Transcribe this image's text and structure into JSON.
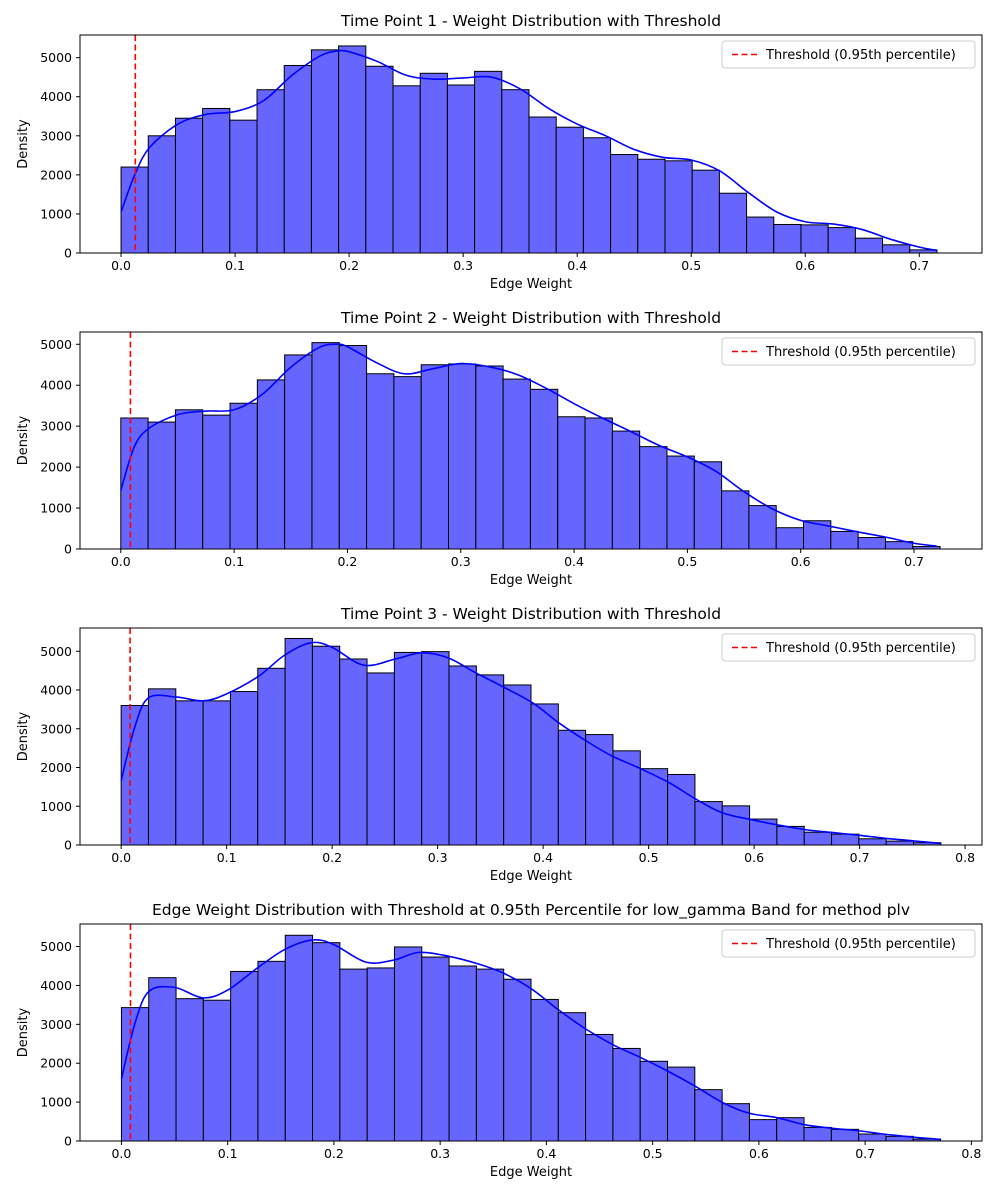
{
  "colors": {
    "bar_fill": "#6666ff",
    "bar_edge": "#000000",
    "kde_line": "#0000ff",
    "threshold_line": "#ff0000",
    "legend_border": "#cccccc"
  },
  "chart_data": [
    {
      "type": "bar",
      "title": "Time Point 1 - Weight Distribution with Threshold",
      "xlabel": "Edge Weight",
      "ylabel": "Density",
      "xlim": [
        -0.036,
        0.755
      ],
      "ylim": [
        0,
        5580
      ],
      "xticks": [
        0.0,
        0.1,
        0.2,
        0.3,
        0.4,
        0.5,
        0.6,
        0.7
      ],
      "xtick_labels": [
        "0.0",
        "0.1",
        "0.2",
        "0.3",
        "0.4",
        "0.5",
        "0.6",
        "0.7"
      ],
      "yticks": [
        0,
        1000,
        2000,
        3000,
        4000,
        5000
      ],
      "ytick_labels": [
        "0",
        "1000",
        "2000",
        "3000",
        "4000",
        "5000"
      ],
      "bin_start": 0.0,
      "bin_end": 0.7155,
      "values": [
        2200,
        3000,
        3450,
        3700,
        3400,
        4180,
        4800,
        5200,
        5300,
        4780,
        4280,
        4600,
        4300,
        4650,
        4180,
        3480,
        3220,
        2950,
        2520,
        2400,
        2360,
        2120,
        1530,
        920,
        730,
        720,
        650,
        380,
        210,
        80
      ],
      "kde": {
        "x": [
          0.0,
          0.012,
          0.025,
          0.05,
          0.075,
          0.1,
          0.125,
          0.15,
          0.175,
          0.19,
          0.2,
          0.225,
          0.25,
          0.275,
          0.3,
          0.325,
          0.35,
          0.375,
          0.4,
          0.425,
          0.45,
          0.475,
          0.5,
          0.525,
          0.55,
          0.575,
          0.6,
          0.625,
          0.65,
          0.675,
          0.7,
          0.715
        ],
        "y": [
          1050,
          2000,
          2700,
          3300,
          3550,
          3620,
          3900,
          4550,
          5050,
          5170,
          5150,
          4900,
          4550,
          4450,
          4480,
          4500,
          4200,
          3700,
          3300,
          3000,
          2650,
          2450,
          2380,
          2100,
          1550,
          1050,
          800,
          740,
          600,
          350,
          150,
          70
        ]
      },
      "threshold": 0.0125,
      "legend": "Threshold (0.95th percentile)"
    },
    {
      "type": "bar",
      "title": "Time Point 2 - Weight Distribution with Threshold",
      "xlabel": "Edge Weight",
      "ylabel": "Density",
      "xlim": [
        -0.036,
        0.76
      ],
      "ylim": [
        0,
        5300
      ],
      "xticks": [
        0.0,
        0.1,
        0.2,
        0.3,
        0.4,
        0.5,
        0.6,
        0.7
      ],
      "xtick_labels": [
        "0.0",
        "0.1",
        "0.2",
        "0.3",
        "0.4",
        "0.5",
        "0.6",
        "0.7"
      ],
      "yticks": [
        0,
        1000,
        2000,
        3000,
        4000,
        5000
      ],
      "ytick_labels": [
        "0",
        "1000",
        "2000",
        "3000",
        "4000",
        "5000"
      ],
      "bin_start": 0.0,
      "bin_end": 0.723,
      "values": [
        3200,
        3100,
        3400,
        3270,
        3560,
        4130,
        4740,
        5040,
        4970,
        4280,
        4210,
        4500,
        4520,
        4470,
        4150,
        3900,
        3230,
        3200,
        2880,
        2500,
        2270,
        2130,
        1420,
        1060,
        520,
        690,
        430,
        280,
        180,
        60
      ],
      "kde": {
        "x": [
          0.0,
          0.012,
          0.025,
          0.05,
          0.075,
          0.1,
          0.125,
          0.15,
          0.175,
          0.19,
          0.2,
          0.225,
          0.25,
          0.275,
          0.3,
          0.325,
          0.35,
          0.375,
          0.4,
          0.425,
          0.45,
          0.475,
          0.5,
          0.525,
          0.55,
          0.575,
          0.6,
          0.625,
          0.65,
          0.675,
          0.7,
          0.72
        ],
        "y": [
          1430,
          2500,
          2950,
          3280,
          3370,
          3400,
          3780,
          4440,
          4920,
          5000,
          4940,
          4560,
          4280,
          4400,
          4530,
          4450,
          4260,
          3930,
          3550,
          3200,
          2870,
          2530,
          2250,
          1900,
          1400,
          980,
          700,
          560,
          420,
          290,
          140,
          70
        ]
      },
      "threshold": 0.0085,
      "legend": "Threshold (0.95th percentile)"
    },
    {
      "type": "bar",
      "title": "Time Point 3 - Weight Distribution with Threshold",
      "xlabel": "Edge Weight",
      "ylabel": "Density",
      "xlim": [
        -0.039,
        0.816
      ],
      "ylim": [
        0,
        5600
      ],
      "xticks": [
        0.0,
        0.1,
        0.2,
        0.3,
        0.4,
        0.5,
        0.6,
        0.7,
        0.8
      ],
      "xtick_labels": [
        "0.0",
        "0.1",
        "0.2",
        "0.3",
        "0.4",
        "0.5",
        "0.6",
        "0.7",
        "0.8"
      ],
      "yticks": [
        0,
        1000,
        2000,
        3000,
        4000,
        5000
      ],
      "ytick_labels": [
        "0",
        "1000",
        "2000",
        "3000",
        "4000",
        "5000"
      ],
      "bin_start": 0.0,
      "bin_end": 0.777,
      "values": [
        3600,
        4030,
        3720,
        3720,
        3960,
        4560,
        5330,
        5130,
        4800,
        4440,
        4970,
        4990,
        4620,
        4390,
        4130,
        3640,
        2960,
        2850,
        2430,
        1970,
        1820,
        1120,
        1010,
        670,
        480,
        330,
        280,
        160,
        100,
        60
      ],
      "kde": {
        "x": [
          0.0,
          0.013,
          0.026,
          0.052,
          0.078,
          0.1,
          0.13,
          0.155,
          0.18,
          0.2,
          0.23,
          0.26,
          0.285,
          0.31,
          0.335,
          0.36,
          0.39,
          0.415,
          0.44,
          0.465,
          0.49,
          0.52,
          0.545,
          0.57,
          0.6,
          0.62,
          0.65,
          0.675,
          0.7,
          0.725,
          0.75,
          0.777
        ],
        "y": [
          1660,
          3050,
          3800,
          3820,
          3720,
          3900,
          4350,
          4900,
          5220,
          5100,
          4640,
          4800,
          4960,
          4830,
          4460,
          4110,
          3670,
          3150,
          2700,
          2300,
          2000,
          1600,
          1180,
          830,
          640,
          530,
          390,
          320,
          250,
          170,
          110,
          40
        ]
      },
      "threshold": 0.0085,
      "legend": "Threshold (0.95th percentile)"
    },
    {
      "type": "bar",
      "title": "Edge Weight Distribution with Threshold at 0.95th Percentile for low_gamma Band for method plv",
      "xlabel": "Edge Weight",
      "ylabel": "Density",
      "xlim": [
        -0.039,
        0.81
      ],
      "ylim": [
        0,
        5580
      ],
      "xticks": [
        0.0,
        0.1,
        0.2,
        0.3,
        0.4,
        0.5,
        0.6,
        0.7,
        0.8
      ],
      "xtick_labels": [
        "0.0",
        "0.1",
        "0.2",
        "0.3",
        "0.4",
        "0.5",
        "0.6",
        "0.7",
        "0.8"
      ],
      "yticks": [
        0,
        1000,
        2000,
        3000,
        4000,
        5000
      ],
      "ytick_labels": [
        "0",
        "1000",
        "2000",
        "3000",
        "4000",
        "5000"
      ],
      "bin_start": 0.0,
      "bin_end": 0.771,
      "values": [
        3430,
        4200,
        3660,
        3620,
        4360,
        4620,
        5290,
        5100,
        4420,
        4450,
        4990,
        4730,
        4500,
        4420,
        4160,
        3640,
        3300,
        2740,
        2380,
        2050,
        1900,
        1320,
        960,
        550,
        600,
        350,
        300,
        180,
        120,
        50
      ],
      "kde": {
        "x": [
          0.0,
          0.013,
          0.026,
          0.05,
          0.077,
          0.1,
          0.128,
          0.154,
          0.18,
          0.2,
          0.23,
          0.256,
          0.28,
          0.308,
          0.335,
          0.36,
          0.386,
          0.41,
          0.437,
          0.463,
          0.49,
          0.514,
          0.54,
          0.565,
          0.59,
          0.617,
          0.643,
          0.668,
          0.695,
          0.72,
          0.745,
          0.771
        ],
        "y": [
          1600,
          3050,
          3850,
          3950,
          3680,
          3880,
          4450,
          4930,
          5170,
          5050,
          4600,
          4650,
          4850,
          4750,
          4560,
          4310,
          3910,
          3400,
          2880,
          2470,
          2130,
          1800,
          1410,
          1000,
          720,
          600,
          420,
          330,
          260,
          170,
          100,
          40
        ]
      },
      "threshold": 0.0085,
      "legend": "Threshold (0.95th percentile)"
    }
  ]
}
